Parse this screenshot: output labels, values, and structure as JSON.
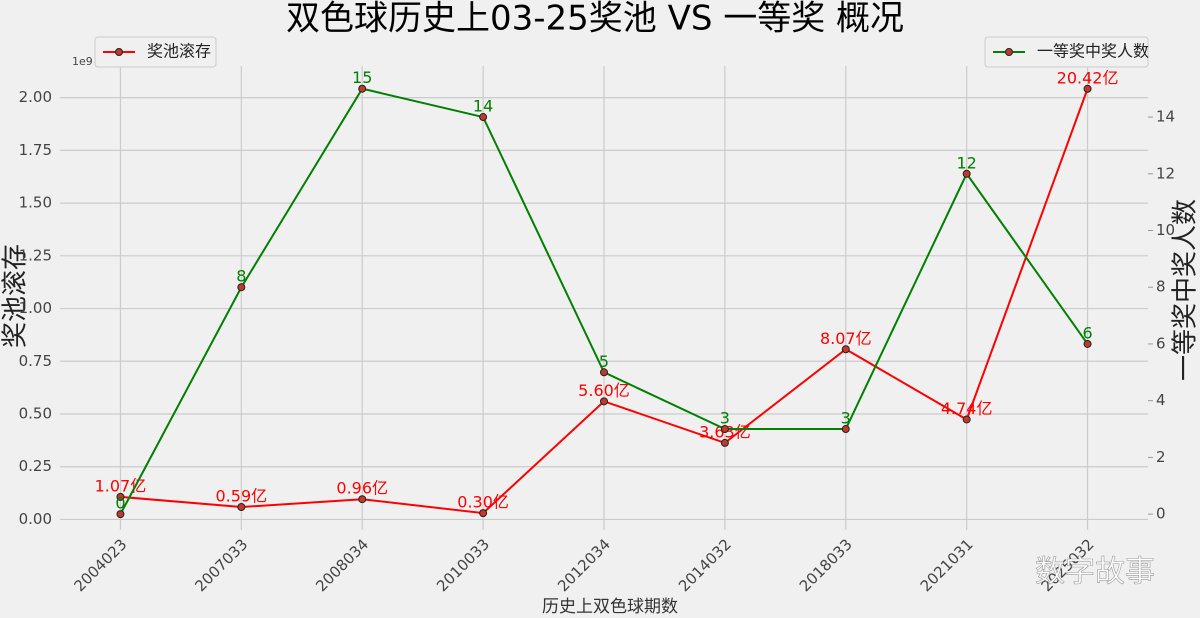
{
  "chart_data": {
    "type": "line",
    "title": "双色球历史上03-25奖池 VS 一等奖 概况",
    "xlabel": "历史上双色球期数",
    "ylabel": "奖池滚存",
    "y2label": "一等奖中奖人数",
    "offset_label": "1e9",
    "watermark": "数字故事",
    "categories": [
      "2004023",
      "2007033",
      "2008034",
      "2010033",
      "2012034",
      "2014032",
      "2018033",
      "2021031",
      "2025032"
    ],
    "series": [
      {
        "name": "奖池滚存",
        "color": "#ff0000",
        "marker_color": "#c0392b",
        "legend": "upper left",
        "values": [
          0.107,
          0.059,
          0.096,
          0.03,
          0.56,
          0.363,
          0.807,
          0.474,
          2.042
        ],
        "value_labels": [
          "1.07亿",
          "0.59亿",
          "0.96亿",
          "0.30亿",
          "5.60亿",
          "3.63亿",
          "8.07亿",
          "4.74亿",
          "20.42亿"
        ]
      },
      {
        "name": "一等奖中奖人数",
        "color": "#008000",
        "marker_color": "#c0392b",
        "axis": "y2",
        "legend": "upper right",
        "values": [
          0,
          8,
          15,
          14,
          5,
          3,
          3,
          12,
          6
        ]
      }
    ],
    "ylim": [
      -0.05,
      2.15
    ],
    "yticks": [
      {
        "value": 0,
        "label": "0.00"
      },
      {
        "value": 0.25,
        "label": "0.25"
      },
      {
        "value": 0.5,
        "label": "0.50"
      },
      {
        "value": 0.75,
        "label": "0.75"
      },
      {
        "value": 1,
        "label": "1.00"
      },
      {
        "value": 1.25,
        "label": "1.25"
      },
      {
        "value": 1.5,
        "label": "1.50"
      },
      {
        "value": 1.75,
        "label": "1.75"
      },
      {
        "value": 2,
        "label": "2.00"
      }
    ],
    "y2lim": [
      -0.56,
      15.8
    ],
    "y2ticks": [
      0,
      2,
      4,
      6,
      8,
      10,
      12,
      14
    ],
    "grid": true
  }
}
